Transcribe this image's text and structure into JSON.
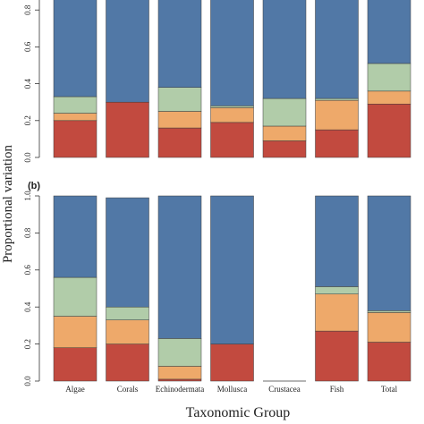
{
  "figure": {
    "ylabel": "Proportional variation",
    "xlabel": "Taxonomic Group"
  },
  "colors": {
    "segment_1": "#c24a3f",
    "segment_2": "#eea96a",
    "segment_3": "#b1cca9",
    "segment_4": "#5178a6"
  },
  "chart_data": [
    {
      "type": "bar",
      "stacked": true,
      "panel": "",
      "categories": [
        "Algae",
        "Corals",
        "Echinodermata",
        "Mollusca",
        "Crustacea",
        "Fish",
        "Total"
      ],
      "ylim": [
        0,
        1.0
      ],
      "yticks": [
        "0.0",
        "0.2",
        "0.4",
        "0.6",
        "0.8"
      ],
      "series": [
        {
          "values": [
            0.2,
            0.3,
            0.16,
            0.19,
            0.09,
            0.15,
            0.29
          ]
        },
        {
          "values": [
            0.04,
            0.0,
            0.09,
            0.08,
            0.08,
            0.16,
            0.07
          ]
        },
        {
          "values": [
            0.09,
            0.0,
            0.13,
            0.01,
            0.15,
            0.01,
            0.15
          ]
        },
        {
          "values": [
            0.67,
            0.7,
            0.62,
            0.72,
            0.68,
            0.68,
            0.49
          ]
        }
      ]
    },
    {
      "type": "bar",
      "stacked": true,
      "panel": "(b)",
      "categories": [
        "Algae",
        "Corals",
        "Echinodermata",
        "Mollusca",
        "Crustacea",
        "Fish",
        "Total"
      ],
      "ylim": [
        0,
        1.0
      ],
      "yticks": [
        "0.0",
        "0.2",
        "0.4",
        "0.6",
        "0.8",
        "1.0"
      ],
      "series": [
        {
          "values": [
            0.18,
            0.2,
            0.01,
            0.2,
            0.0,
            0.27,
            0.21
          ]
        },
        {
          "values": [
            0.17,
            0.13,
            0.07,
            0.0,
            0.0,
            0.2,
            0.16
          ]
        },
        {
          "values": [
            0.21,
            0.07,
            0.15,
            0.0,
            0.0,
            0.04,
            0.01
          ]
        },
        {
          "values": [
            0.44,
            0.59,
            0.77,
            0.8,
            0.0,
            0.49,
            0.62
          ]
        }
      ]
    }
  ]
}
